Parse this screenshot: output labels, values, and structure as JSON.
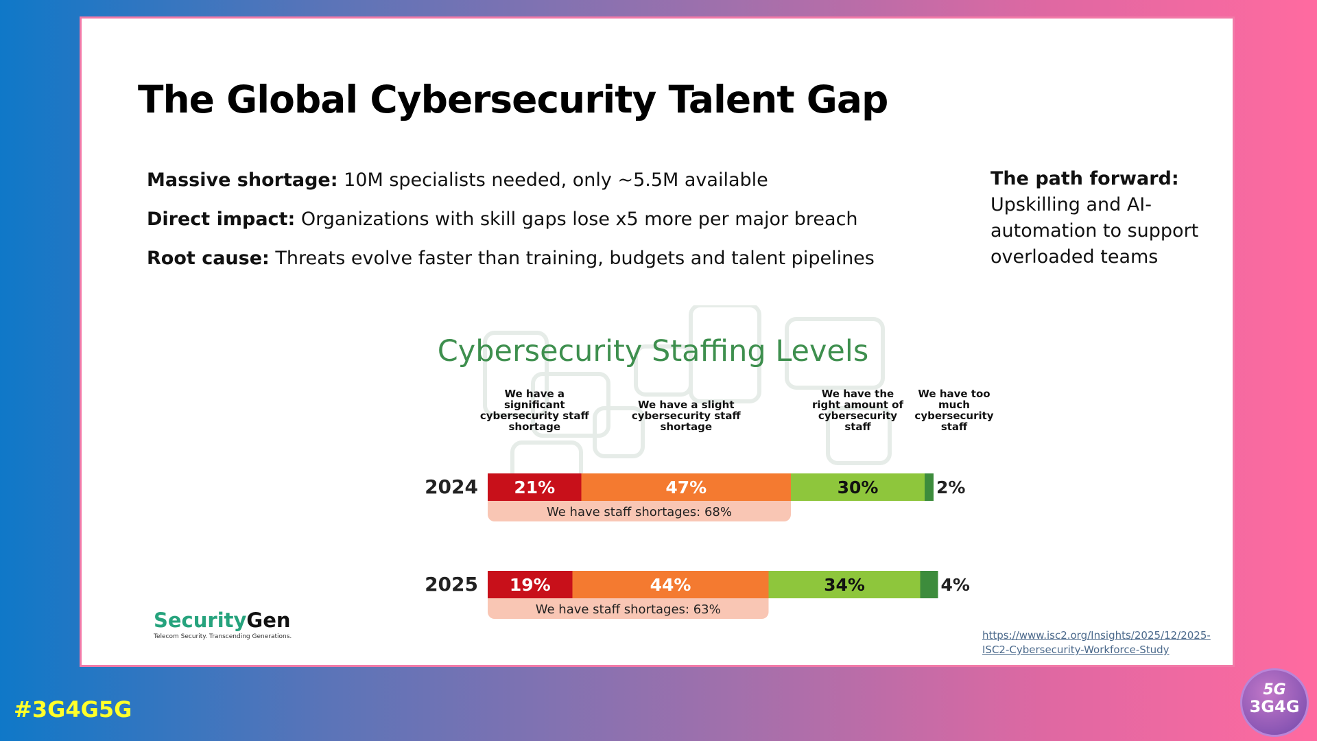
{
  "slide": {
    "title": "The Global Cybersecurity Talent Gap",
    "bullets": [
      {
        "bold": "Massive shortage:",
        "text": " 10M specialists needed, only ~5.5M available"
      },
      {
        "bold": "Direct impact:",
        "text": " Organizations with skill gaps lose x5 more per major breach"
      },
      {
        "bold": "Root cause:",
        "text": " Threats evolve faster than training, budgets and talent pipelines"
      }
    ],
    "side": {
      "heading": "The path forward:",
      "text": "Upskilling and AI-automation to support overloaded teams"
    },
    "source": "https://www.isc2.org/Insights/2025/12/2025-ISC2-Cybersecurity-Workforce-Study"
  },
  "logo": {
    "name_a": "Security",
    "name_b": "Gen",
    "tagline": "Telecom Security. Transcending Generations."
  },
  "footer": {
    "hashtag": "#3G4G5G",
    "badge_top": "5G",
    "badge_bottom": "3G4G"
  },
  "colors": {
    "significant": "#c8101a",
    "slight": "#f47a30",
    "right": "#8ec63c",
    "toomuch": "#3d8c3c",
    "shortage_band": "#f9c6b4",
    "title_green": "#3e8f4e"
  },
  "chart_data": {
    "type": "bar",
    "stacked": true,
    "orientation": "horizontal",
    "title": "Cybersecurity Staffing Levels",
    "categories": [
      "2024",
      "2025"
    ],
    "series": [
      {
        "name": "We have a significant cybersecurity staff shortage",
        "values": [
          21,
          19
        ],
        "labels": [
          "21%",
          "19%"
        ]
      },
      {
        "name": "We have a slight cybersecurity staff shortage",
        "values": [
          47,
          44
        ],
        "labels": [
          "47%",
          "44%"
        ]
      },
      {
        "name": "We have the right amount of cybersecurity staff",
        "values": [
          30,
          34
        ],
        "labels": [
          "30%",
          "34%"
        ]
      },
      {
        "name": "We have too much cybersecurity staff",
        "values": [
          2,
          4
        ],
        "labels": [
          "2%",
          "4%"
        ]
      }
    ],
    "column_labels": [
      [
        "We have a",
        "significant",
        "cybersecurity staff",
        "shortage"
      ],
      [
        "We have a slight",
        "cybersecurity staff",
        "shortage"
      ],
      [
        "We have the",
        "right amount of",
        "cybersecurity",
        "staff"
      ],
      [
        "We have too",
        "much",
        "cybersecurity",
        "staff"
      ]
    ],
    "shortage_totals": [
      68,
      63
    ],
    "shortage_labels": [
      "We have staff shortages: 68%",
      "We have staff shortages: 63%"
    ],
    "xlim": [
      0,
      100
    ]
  }
}
